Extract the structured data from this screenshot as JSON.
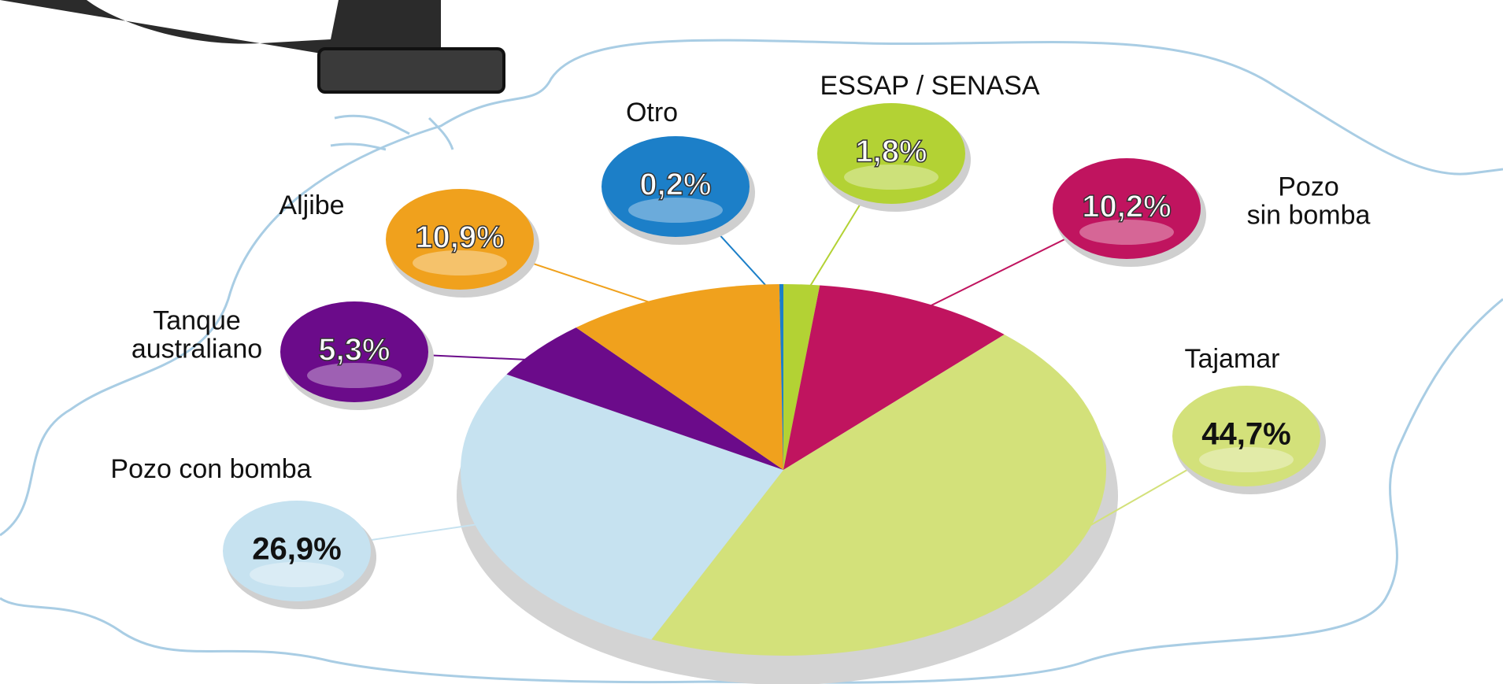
{
  "chart_data": {
    "type": "pie",
    "categories": [
      "ESSAP / SENASA",
      "Pozo\nsin bomba",
      "Tajamar",
      "Pozo con bomba",
      "Tanque\naustraliano",
      "Aljibe",
      "Otro"
    ],
    "values": [
      1.8,
      10.2,
      44.7,
      26.9,
      5.3,
      10.9,
      0.2
    ],
    "value_labels": [
      "1,8%",
      "10,2%",
      "44,7%",
      "26,9%",
      "5,3%",
      "10,9%",
      "0,2%"
    ],
    "colors": [
      "#b3d234",
      "#c0145f",
      "#d3e17a",
      "#c6e2f0",
      "#6b0b8a",
      "#f0a11d",
      "#1c7fc8"
    ]
  }
}
